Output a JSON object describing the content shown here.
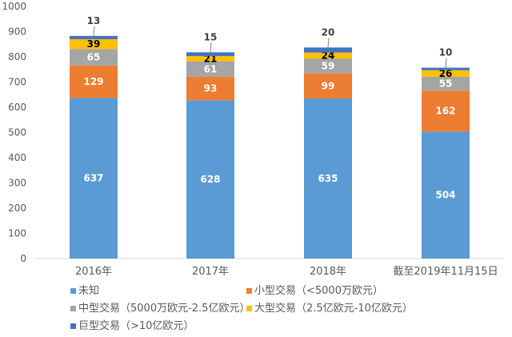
{
  "chart_data": {
    "type": "stacked-bar",
    "categories": [
      "2016年",
      "2017年",
      "2018年",
      "截至2019年11月15日"
    ],
    "ylim": [
      0,
      1000
    ],
    "yticks": [
      0,
      100,
      200,
      300,
      400,
      500,
      600,
      700,
      800,
      900,
      1000
    ],
    "grid": false,
    "legend_position": "bottom",
    "series": [
      {
        "name": "未知",
        "color": "#5B9BD5",
        "values": [
          637,
          628,
          635,
          504
        ]
      },
      {
        "name": "小型交易（<5000万欧元）",
        "color": "#ED7D31",
        "values": [
          129,
          93,
          99,
          162
        ]
      },
      {
        "name": "中型交易（5000万欧元-2.5亿欧元）",
        "color": "#A5A5A5",
        "values": [
          65,
          61,
          59,
          55
        ]
      },
      {
        "name": "大型交易（2.5亿欧元-10亿欧元）",
        "color": "#FFC000",
        "values": [
          39,
          21,
          24,
          26
        ]
      },
      {
        "name": "巨型交易（>10亿欧元）",
        "color": "#4472C4",
        "values": [
          13,
          15,
          20,
          10
        ]
      }
    ]
  }
}
